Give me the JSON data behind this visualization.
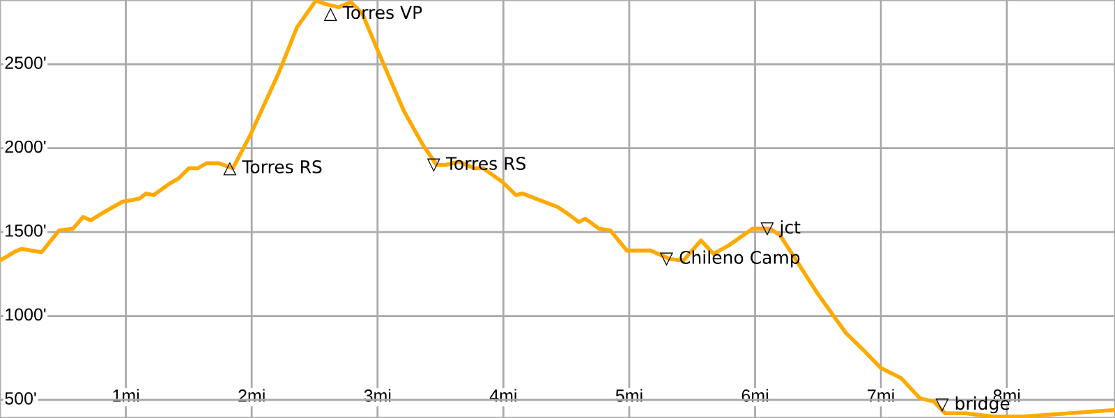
{
  "chart_data": {
    "type": "line",
    "x": [
      0,
      0.11,
      0.17,
      0.33,
      0.47,
      0.58,
      0.66,
      0.72,
      0.83,
      0.97,
      1.11,
      1.16,
      1.22,
      1.35,
      1.42,
      1.5,
      1.57,
      1.64,
      1.74,
      1.85,
      1.99,
      2.21,
      2.36,
      2.51,
      2.58,
      2.69,
      2.79,
      2.88,
      3.02,
      3.21,
      3.36,
      3.47,
      3.54,
      3.65,
      3.77,
      3.84,
      3.99,
      4.1,
      4.15,
      4.29,
      4.43,
      4.51,
      4.6,
      4.65,
      4.76,
      4.85,
      4.98,
      5.17,
      5.32,
      5.43,
      5.57,
      5.67,
      5.79,
      5.98,
      6.12,
      6.2,
      6.5,
      6.72,
      6.83,
      7.0,
      7.16,
      7.31,
      7.42,
      7.51,
      7.67,
      7.9,
      8.12,
      8.49,
      8.86
    ],
    "series": [
      {
        "color": "#ffaa00",
        "values": [
          1330,
          1380,
          1400,
          1380,
          1510,
          1520,
          1590,
          1570,
          1620,
          1680,
          1700,
          1730,
          1720,
          1790,
          1820,
          1880,
          1880,
          1910,
          1910,
          1880,
          2080,
          2440,
          2720,
          2880,
          2860,
          2840,
          2870,
          2800,
          2550,
          2220,
          2020,
          1900,
          1900,
          1920,
          1880,
          1880,
          1800,
          1720,
          1730,
          1690,
          1650,
          1610,
          1560,
          1580,
          1520,
          1510,
          1390,
          1390,
          1340,
          1330,
          1450,
          1370,
          1420,
          1520,
          1520,
          1480,
          1130,
          900,
          820,
          690,
          630,
          510,
          490,
          420,
          420,
          400,
          400,
          420,
          440
        ]
      }
    ],
    "xlim": [
      0,
      8.86
    ],
    "ylim": [
      392,
      2883
    ],
    "xticks": [
      {
        "value": 1,
        "label": "1mi"
      },
      {
        "value": 2,
        "label": "2mi"
      },
      {
        "value": 3,
        "label": "3mi"
      },
      {
        "value": 4,
        "label": "4mi"
      },
      {
        "value": 5,
        "label": "5mi"
      },
      {
        "value": 6,
        "label": "6mi"
      },
      {
        "value": 7,
        "label": "7mi"
      },
      {
        "value": 8,
        "label": "8mi"
      }
    ],
    "yticks": [
      {
        "value": 500,
        "label": "500'"
      },
      {
        "value": 1000,
        "label": "1000'"
      },
      {
        "value": 1500,
        "label": "1500'"
      },
      {
        "value": 2000,
        "label": "2000'"
      },
      {
        "value": 2500,
        "label": "2500'"
      }
    ],
    "grid": true,
    "annotations": [
      {
        "text": "△ Torres RS",
        "x": 1.85,
        "y": 1880
      },
      {
        "text": "△ Torres VP",
        "x": 2.65,
        "y": 2850
      },
      {
        "text": "▽ Torres RS",
        "x": 3.47,
        "y": 1900
      },
      {
        "text": "▽ Chileno Camp",
        "x": 5.32,
        "y": 1340
      },
      {
        "text": "▽ jct",
        "x": 6.12,
        "y": 1520
      },
      {
        "text": "▽ bridge",
        "x": 7.51,
        "y": 420
      }
    ]
  }
}
